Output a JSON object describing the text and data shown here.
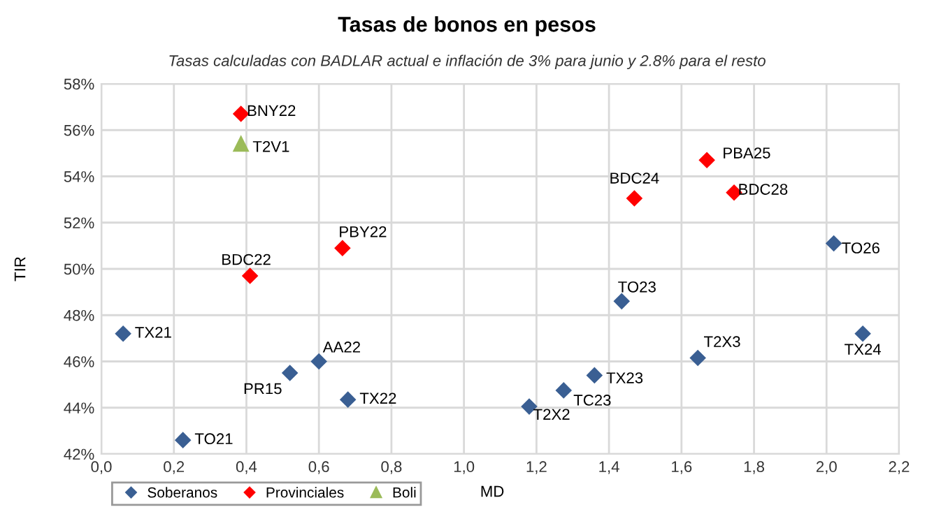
{
  "chart_data": {
    "type": "scatter",
    "title": "Tasas de bonos en pesos",
    "subtitle": "Tasas calculadas con BADLAR actual e inflación de 3% para junio y 2.8% para el resto",
    "xlabel": "MD",
    "ylabel": "TIR",
    "series": [
      {
        "name": "Soberanos",
        "color": "#3a5f93",
        "marker": "diamond",
        "x": [
          0.06,
          0.225,
          0.52,
          0.6,
          0.68,
          2.02,
          1.435,
          1.645,
          2.1,
          1.36,
          1.275,
          1.18
        ],
        "values": [
          47.2,
          42.6,
          45.5,
          46.0,
          44.35,
          51.1,
          48.6,
          46.15,
          47.2,
          45.4,
          44.75,
          44.05
        ]
      },
      {
        "name": "Provinciales",
        "color": "#ff0000",
        "marker": "diamond",
        "x": [
          0.385,
          0.41,
          0.665,
          1.47,
          1.67,
          1.745
        ],
        "values": [
          56.7,
          49.7,
          50.9,
          53.05,
          54.7,
          53.3
        ]
      },
      {
        "name": "Boli",
        "color": "#9bbb59",
        "marker": "triangle",
        "x": [
          0.385
        ],
        "values": [
          55.4
        ]
      }
    ],
    "annotations": [
      {
        "text": "TX21",
        "x": 0.06,
        "y": 47.2
      },
      {
        "text": "TO21",
        "x": 0.225,
        "y": 42.6
      },
      {
        "text": "PR15",
        "x": 0.52,
        "y": 45.5
      },
      {
        "text": "AA22",
        "x": 0.6,
        "y": 46.0
      },
      {
        "text": "TX22",
        "x": 0.68,
        "y": 44.35
      },
      {
        "text": "TO26",
        "x": 2.02,
        "y": 51.1
      },
      {
        "text": "TO23",
        "x": 1.435,
        "y": 48.6
      },
      {
        "text": "T2X3",
        "x": 1.645,
        "y": 46.15
      },
      {
        "text": "TX24",
        "x": 2.1,
        "y": 47.2
      },
      {
        "text": "TX23",
        "x": 1.36,
        "y": 45.4
      },
      {
        "text": "TC23",
        "x": 1.275,
        "y": 44.75
      },
      {
        "text": "T2X2",
        "x": 1.18,
        "y": 44.05
      },
      {
        "text": "BNY22",
        "x": 0.385,
        "y": 56.7
      },
      {
        "text": "BDC22",
        "x": 0.41,
        "y": 49.7
      },
      {
        "text": "PBY22",
        "x": 0.665,
        "y": 50.9
      },
      {
        "text": "BDC24",
        "x": 1.47,
        "y": 53.05
      },
      {
        "text": "PBA25",
        "x": 1.67,
        "y": 54.7
      },
      {
        "text": "BDC28",
        "x": 1.745,
        "y": 53.3
      },
      {
        "text": "T2V1",
        "x": 0.385,
        "y": 55.4
      }
    ],
    "xlim": [
      0,
      2.2
    ],
    "xticks": [
      {
        "value": 0,
        "label": "0,0"
      },
      {
        "value": 0.2,
        "label": "0,2"
      },
      {
        "value": 0.4,
        "label": "0,4"
      },
      {
        "value": 0.6,
        "label": "0,6"
      },
      {
        "value": 0.8,
        "label": "0,8"
      },
      {
        "value": 1.0,
        "label": "1,0"
      },
      {
        "value": 1.2,
        "label": "1,2"
      },
      {
        "value": 1.4,
        "label": "1,4"
      },
      {
        "value": 1.6,
        "label": "1,6"
      },
      {
        "value": 1.8,
        "label": "1,8"
      },
      {
        "value": 2.0,
        "label": "2,0"
      },
      {
        "value": 2.2,
        "label": "2,2"
      }
    ],
    "ylim": [
      42,
      58
    ],
    "yticks": [
      {
        "value": 42,
        "label": "42%"
      },
      {
        "value": 44,
        "label": "44%"
      },
      {
        "value": 46,
        "label": "46%"
      },
      {
        "value": 48,
        "label": "48%"
      },
      {
        "value": 50,
        "label": "50%"
      },
      {
        "value": 52,
        "label": "52%"
      },
      {
        "value": 54,
        "label": "54%"
      },
      {
        "value": 56,
        "label": "56%"
      },
      {
        "value": 58,
        "label": "58%"
      }
    ],
    "grid": true,
    "legend": "bottom"
  }
}
